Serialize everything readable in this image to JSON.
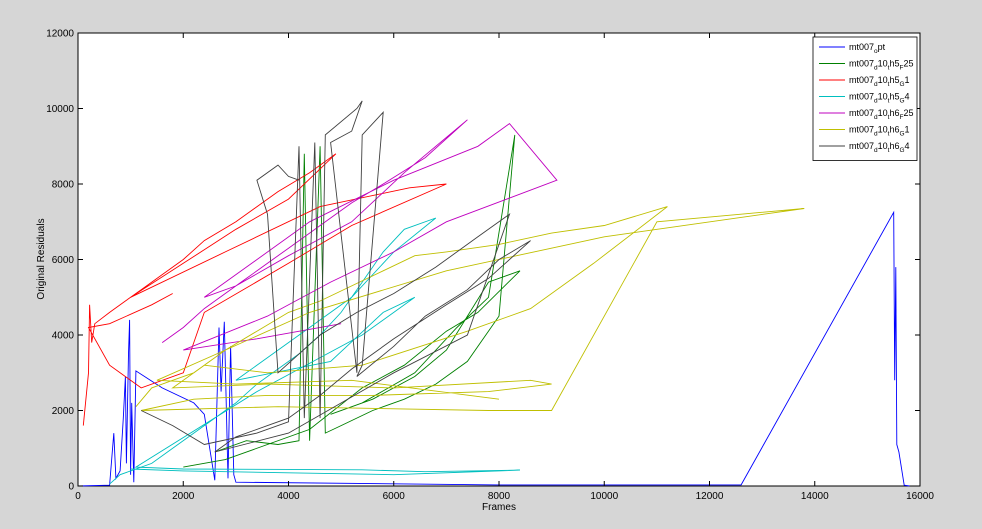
{
  "chart_data": {
    "type": "line",
    "title": "",
    "xlabel": "Frames",
    "ylabel": "Original Residuals",
    "xlim": [
      0,
      16000
    ],
    "ylim": [
      0,
      12000
    ],
    "xticks": [
      0,
      2000,
      4000,
      6000,
      8000,
      10000,
      12000,
      14000,
      16000
    ],
    "yticks": [
      0,
      2000,
      4000,
      6000,
      8000,
      10000,
      12000
    ],
    "grid": false,
    "legend_position": "top-right",
    "series": [
      {
        "name": "mt007_opt",
        "label_parts": [
          [
            "mt007",
            ""
          ],
          [
            "o",
            "sub"
          ],
          [
            "pt",
            ""
          ]
        ],
        "color": "#0000ff",
        "points": [
          [
            0,
            0
          ],
          [
            600,
            20
          ],
          [
            680,
            1400
          ],
          [
            720,
            200
          ],
          [
            800,
            400
          ],
          [
            860,
            1800
          ],
          [
            900,
            2900
          ],
          [
            920,
            600
          ],
          [
            960,
            3500
          ],
          [
            980,
            4400
          ],
          [
            1000,
            300
          ],
          [
            1020,
            2200
          ],
          [
            1060,
            100
          ],
          [
            1100,
            3050
          ],
          [
            1600,
            2600
          ],
          [
            2200,
            2200
          ],
          [
            2400,
            1900
          ],
          [
            2600,
            150
          ],
          [
            2680,
            4200
          ],
          [
            2720,
            2500
          ],
          [
            2780,
            4350
          ],
          [
            2850,
            200
          ],
          [
            2900,
            3700
          ],
          [
            2960,
            300
          ],
          [
            3000,
            100
          ],
          [
            8000,
            30
          ],
          [
            12600,
            30
          ],
          [
            15500,
            7250
          ],
          [
            15520,
            2800
          ],
          [
            15540,
            5800
          ],
          [
            15560,
            1100
          ],
          [
            15600,
            900
          ],
          [
            15700,
            20
          ],
          [
            15800,
            0
          ]
        ]
      },
      {
        "name": "mt007_d10_th5_F25",
        "label_parts": [
          [
            "mt007",
            ""
          ],
          [
            "d",
            "sub"
          ],
          [
            "10",
            ""
          ],
          [
            "t",
            "sub"
          ],
          [
            "h5",
            ""
          ],
          [
            "F",
            "sub"
          ],
          [
            "25",
            ""
          ]
        ],
        "color": "#008000",
        "points": [
          [
            2600,
            900
          ],
          [
            3200,
            1200
          ],
          [
            3800,
            1100
          ],
          [
            4200,
            1200
          ],
          [
            4300,
            8800
          ],
          [
            4400,
            1200
          ],
          [
            4600,
            9000
          ],
          [
            4700,
            1400
          ],
          [
            5000,
            1600
          ],
          [
            5600,
            2000
          ],
          [
            6200,
            2300
          ],
          [
            6800,
            2700
          ],
          [
            7400,
            3300
          ],
          [
            8000,
            4500
          ],
          [
            8300,
            9300
          ],
          [
            7800,
            5000
          ],
          [
            7200,
            4200
          ],
          [
            6400,
            3000
          ],
          [
            5400,
            2200
          ],
          [
            4800,
            1900
          ],
          [
            5600,
            2300
          ],
          [
            6400,
            2900
          ],
          [
            7000,
            3600
          ],
          [
            7800,
            5400
          ],
          [
            8400,
            5700
          ],
          [
            7600,
            4600
          ],
          [
            7000,
            4100
          ],
          [
            6200,
            3200
          ],
          [
            5400,
            2600
          ],
          [
            4400,
            1500
          ],
          [
            2800,
            700
          ],
          [
            2000,
            500
          ]
        ]
      },
      {
        "name": "mt007_d10_th5_G1",
        "label_parts": [
          [
            "mt007",
            ""
          ],
          [
            "d",
            "sub"
          ],
          [
            "10",
            ""
          ],
          [
            "t",
            "sub"
          ],
          [
            "h5",
            ""
          ],
          [
            "G",
            "sub"
          ],
          [
            "1",
            ""
          ]
        ],
        "color": "#ff0000",
        "points": [
          [
            100,
            1600
          ],
          [
            200,
            3000
          ],
          [
            220,
            4800
          ],
          [
            260,
            3800
          ],
          [
            320,
            4300
          ],
          [
            600,
            4600
          ],
          [
            900,
            4900
          ],
          [
            1200,
            5200
          ],
          [
            1600,
            5600
          ],
          [
            2000,
            6000
          ],
          [
            2400,
            6500
          ],
          [
            3000,
            7000
          ],
          [
            3800,
            7800
          ],
          [
            4400,
            8300
          ],
          [
            4900,
            8800
          ],
          [
            4000,
            7600
          ],
          [
            3000,
            6800
          ],
          [
            2000,
            5900
          ],
          [
            1000,
            5000
          ],
          [
            2800,
            6200
          ],
          [
            4600,
            7400
          ],
          [
            6300,
            7900
          ],
          [
            7000,
            8000
          ],
          [
            5200,
            6900
          ],
          [
            4000,
            5900
          ],
          [
            2400,
            4600
          ],
          [
            2000,
            3000
          ],
          [
            1200,
            2600
          ],
          [
            600,
            3200
          ],
          [
            200,
            4200
          ],
          [
            600,
            4300
          ],
          [
            1400,
            4800
          ],
          [
            1800,
            5100
          ]
        ]
      },
      {
        "name": "mt007_d10_th5_G4",
        "label_parts": [
          [
            "mt007",
            ""
          ],
          [
            "d",
            "sub"
          ],
          [
            "10",
            ""
          ],
          [
            "t",
            "sub"
          ],
          [
            "h5",
            ""
          ],
          [
            "G",
            "sub"
          ],
          [
            "4",
            ""
          ]
        ],
        "color": "#00bfbf",
        "points": [
          [
            600,
            50
          ],
          [
            800,
            300
          ],
          [
            1000,
            400
          ],
          [
            1400,
            600
          ],
          [
            1800,
            1000
          ],
          [
            2200,
            1400
          ],
          [
            2600,
            1800
          ],
          [
            3000,
            2200
          ],
          [
            3400,
            2700
          ],
          [
            3800,
            3100
          ],
          [
            4200,
            3500
          ],
          [
            4600,
            4000
          ],
          [
            5000,
            4600
          ],
          [
            5400,
            5400
          ],
          [
            5800,
            6200
          ],
          [
            6200,
            6800
          ],
          [
            6800,
            7100
          ],
          [
            6000,
            6200
          ],
          [
            5200,
            5000
          ],
          [
            4400,
            4200
          ],
          [
            3800,
            3600
          ],
          [
            3200,
            3000
          ],
          [
            3000,
            2800
          ],
          [
            4800,
            3300
          ],
          [
            5800,
            4600
          ],
          [
            6400,
            5000
          ],
          [
            5400,
            4000
          ],
          [
            4200,
            3100
          ],
          [
            3400,
            2500
          ],
          [
            1100,
            500
          ],
          [
            2000,
            450
          ],
          [
            4000,
            440
          ],
          [
            5400,
            430
          ],
          [
            6600,
            380
          ],
          [
            8400,
            420
          ],
          [
            6000,
            300
          ],
          [
            4000,
            350
          ],
          [
            2000,
            400
          ],
          [
            1000,
            450
          ]
        ]
      },
      {
        "name": "mt007_d10_th6_F25",
        "label_parts": [
          [
            "mt007",
            ""
          ],
          [
            "d",
            "sub"
          ],
          [
            "10",
            ""
          ],
          [
            "t",
            "sub"
          ],
          [
            "h6",
            ""
          ],
          [
            "F",
            "sub"
          ],
          [
            "25",
            ""
          ]
        ],
        "color": "#bf00bf",
        "points": [
          [
            1600,
            3800
          ],
          [
            2000,
            4200
          ],
          [
            2400,
            4700
          ],
          [
            2800,
            5100
          ],
          [
            3200,
            5500
          ],
          [
            3600,
            5900
          ],
          [
            4000,
            6300
          ],
          [
            4400,
            6700
          ],
          [
            4800,
            7100
          ],
          [
            5200,
            7500
          ],
          [
            5800,
            8000
          ],
          [
            6600,
            8700
          ],
          [
            7400,
            9700
          ],
          [
            6200,
            8300
          ],
          [
            5200,
            7000
          ],
          [
            4000,
            6100
          ],
          [
            3000,
            5300
          ],
          [
            2400,
            5000
          ],
          [
            4400,
            7000
          ],
          [
            6000,
            8100
          ],
          [
            7600,
            9000
          ],
          [
            8200,
            9600
          ],
          [
            9100,
            8100
          ],
          [
            7000,
            7000
          ],
          [
            6000,
            6200
          ],
          [
            4800,
            5400
          ],
          [
            3600,
            4500
          ],
          [
            2000,
            3600
          ],
          [
            3400,
            3900
          ],
          [
            5000,
            4300
          ]
        ]
      },
      {
        "name": "mt007_d10_th6_G1",
        "label_parts": [
          [
            "mt007",
            ""
          ],
          [
            "d",
            "sub"
          ],
          [
            "10",
            ""
          ],
          [
            "t",
            "sub"
          ],
          [
            "h6",
            ""
          ],
          [
            "G",
            "sub"
          ],
          [
            "1",
            ""
          ]
        ],
        "color": "#bfbf00",
        "points": [
          [
            1100,
            2100
          ],
          [
            1400,
            2600
          ],
          [
            1800,
            2800
          ],
          [
            2200,
            3000
          ],
          [
            2800,
            3600
          ],
          [
            3400,
            4100
          ],
          [
            4000,
            4600
          ],
          [
            4600,
            4900
          ],
          [
            5200,
            5300
          ],
          [
            5800,
            5700
          ],
          [
            6400,
            6100
          ],
          [
            7000,
            6200
          ],
          [
            8000,
            6400
          ],
          [
            9000,
            6700
          ],
          [
            10000,
            6900
          ],
          [
            11200,
            7400
          ],
          [
            9800,
            5900
          ],
          [
            8600,
            4700
          ],
          [
            7400,
            4100
          ],
          [
            5400,
            3200
          ],
          [
            3600,
            3000
          ],
          [
            2400,
            3200
          ],
          [
            1800,
            2600
          ],
          [
            3600,
            2700
          ],
          [
            6000,
            2600
          ],
          [
            8600,
            2800
          ],
          [
            9000,
            2700
          ],
          [
            7800,
            2500
          ],
          [
            5600,
            2400
          ],
          [
            3600,
            2400
          ],
          [
            2200,
            2300
          ],
          [
            1200,
            2000
          ],
          [
            3800,
            2100
          ],
          [
            7800,
            2000
          ],
          [
            9000,
            2000
          ],
          [
            11000,
            7000
          ],
          [
            12600,
            7200
          ],
          [
            13800,
            7350
          ],
          [
            10000,
            6600
          ],
          [
            7000,
            5700
          ],
          [
            4400,
            4600
          ],
          [
            2800,
            3600
          ],
          [
            1500,
            2800
          ],
          [
            3000,
            2700
          ],
          [
            5200,
            2800
          ],
          [
            8000,
            2300
          ]
        ]
      },
      {
        "name": "mt007_d10_th6_G4",
        "label_parts": [
          [
            "mt007",
            ""
          ],
          [
            "d",
            "sub"
          ],
          [
            "10",
            ""
          ],
          [
            "t",
            "sub"
          ],
          [
            "h6",
            ""
          ],
          [
            "G",
            "sub"
          ],
          [
            "4",
            ""
          ]
        ],
        "color": "#404040",
        "points": [
          [
            1200,
            2000
          ],
          [
            1800,
            1600
          ],
          [
            2400,
            1100
          ],
          [
            3400,
            1400
          ],
          [
            4000,
            1700
          ],
          [
            4200,
            9000
          ],
          [
            4300,
            1800
          ],
          [
            4500,
            9100
          ],
          [
            4600,
            1800
          ],
          [
            4700,
            9300
          ],
          [
            5300,
            10000
          ],
          [
            5400,
            10200
          ],
          [
            5200,
            9400
          ],
          [
            4800,
            9100
          ],
          [
            5200,
            4200
          ],
          [
            5300,
            3000
          ],
          [
            5400,
            9300
          ],
          [
            5800,
            9900
          ],
          [
            5400,
            3200
          ],
          [
            5300,
            2900
          ],
          [
            6000,
            3700
          ],
          [
            6600,
            4500
          ],
          [
            7400,
            5200
          ],
          [
            8000,
            6000
          ],
          [
            8600,
            6500
          ],
          [
            7800,
            5500
          ],
          [
            7000,
            4800
          ],
          [
            6000,
            3900
          ],
          [
            5200,
            3100
          ],
          [
            4600,
            2400
          ],
          [
            4000,
            1800
          ],
          [
            3600,
            1600
          ],
          [
            3000,
            1300
          ],
          [
            2600,
            900
          ],
          [
            4000,
            1400
          ],
          [
            6000,
            3000
          ],
          [
            7400,
            4000
          ],
          [
            8200,
            7200
          ],
          [
            7600,
            6600
          ],
          [
            6800,
            5800
          ],
          [
            6000,
            5100
          ],
          [
            5300,
            4600
          ],
          [
            4600,
            4000
          ],
          [
            3800,
            3000
          ],
          [
            3600,
            7200
          ],
          [
            3400,
            8100
          ],
          [
            3800,
            8500
          ],
          [
            4000,
            8200
          ],
          [
            4200,
            8100
          ]
        ]
      }
    ]
  }
}
